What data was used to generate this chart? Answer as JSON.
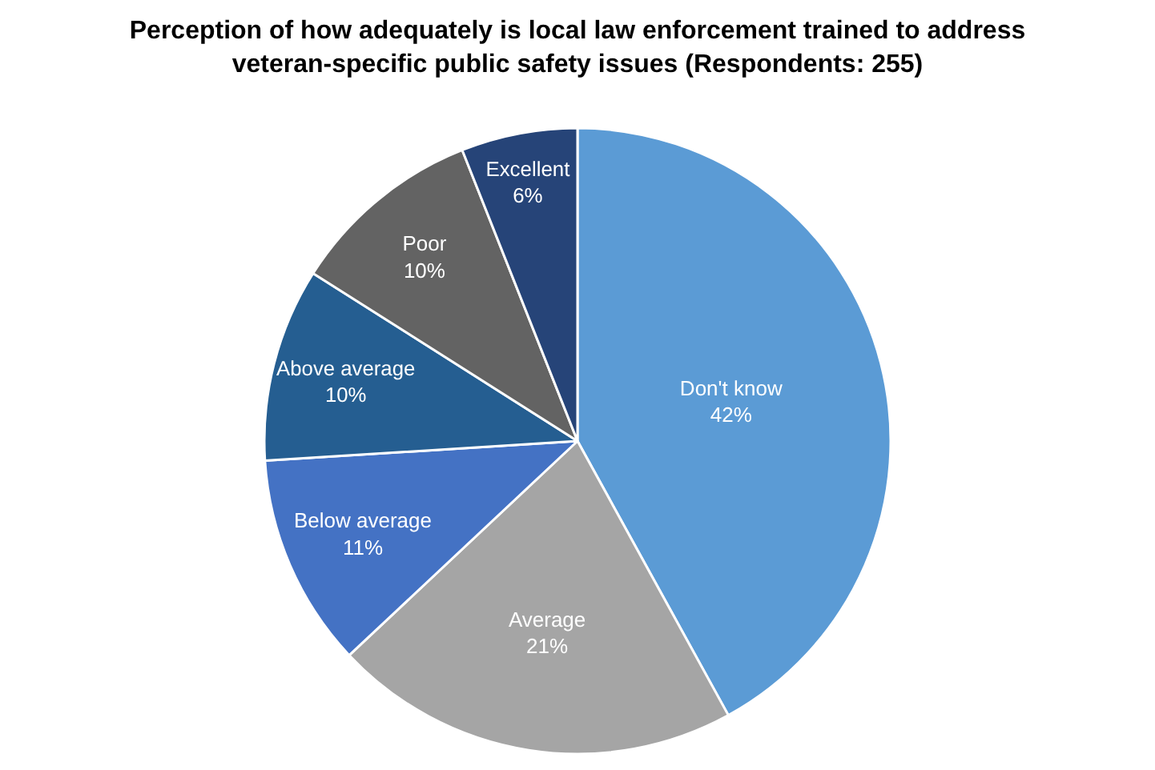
{
  "chart_data": {
    "type": "pie",
    "title": "Perception of how adequately is local law enforcement trained to address\nveteran-specific public safety issues (Respondents: 255)",
    "categories": [
      "Don't know",
      "Average",
      "Below average",
      "Above average",
      "Poor",
      "Excellent"
    ],
    "values": [
      42,
      21,
      11,
      10,
      10,
      6
    ],
    "value_labels": [
      "42%",
      "21%",
      "11%",
      "10%",
      "10%",
      "6%"
    ],
    "colors": [
      "#5b9bd5",
      "#a5a5a5",
      "#4472c4",
      "#255e91",
      "#636363",
      "#264478"
    ],
    "legend": false
  }
}
